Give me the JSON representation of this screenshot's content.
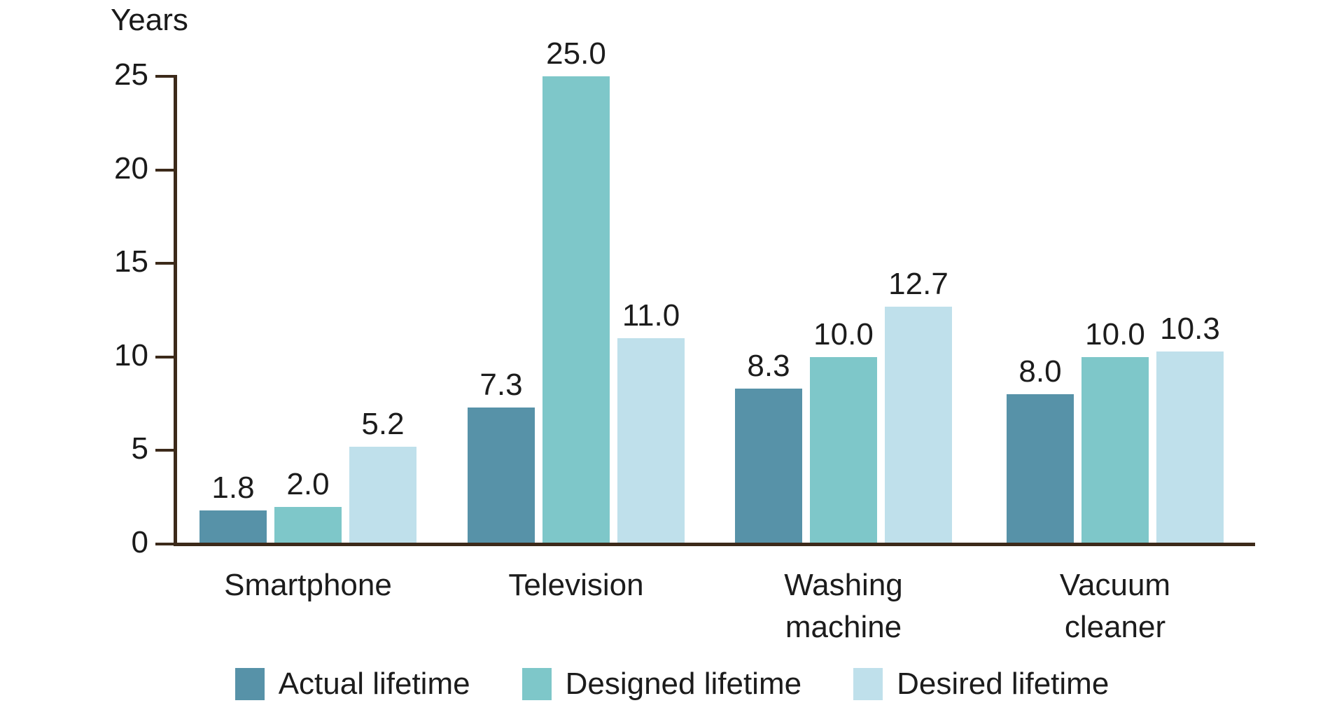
{
  "chart_data": {
    "type": "bar",
    "title": "",
    "ylabel": "Years",
    "xlabel": "",
    "categories": [
      "Smartphone",
      "Television",
      "Washing machine",
      "Vacuum cleaner"
    ],
    "category_label_lines": [
      [
        "Smartphone"
      ],
      [
        "Television"
      ],
      [
        "Washing",
        "machine"
      ],
      [
        "Vacuum",
        "cleaner"
      ]
    ],
    "series": [
      {
        "name": "Actual lifetime",
        "color": "#5792a8",
        "values": [
          1.8,
          7.3,
          8.3,
          8.0
        ]
      },
      {
        "name": "Designed lifetime",
        "color": "#7ec7c9",
        "values": [
          2.0,
          25.0,
          10.0,
          10.0
        ]
      },
      {
        "name": "Desired lifetime",
        "color": "#bfe0eb",
        "values": [
          5.2,
          11.0,
          12.7,
          10.3
        ]
      }
    ],
    "ylim": [
      0,
      25
    ],
    "yticks": [
      0,
      5,
      10,
      15,
      20,
      25
    ],
    "grid": false,
    "legend_position": "bottom",
    "value_labels": true,
    "value_label_decimals": 1
  },
  "colors": {
    "axis": "#3c2a1a",
    "text": "#1c1c1c",
    "background": "#ffffff"
  }
}
